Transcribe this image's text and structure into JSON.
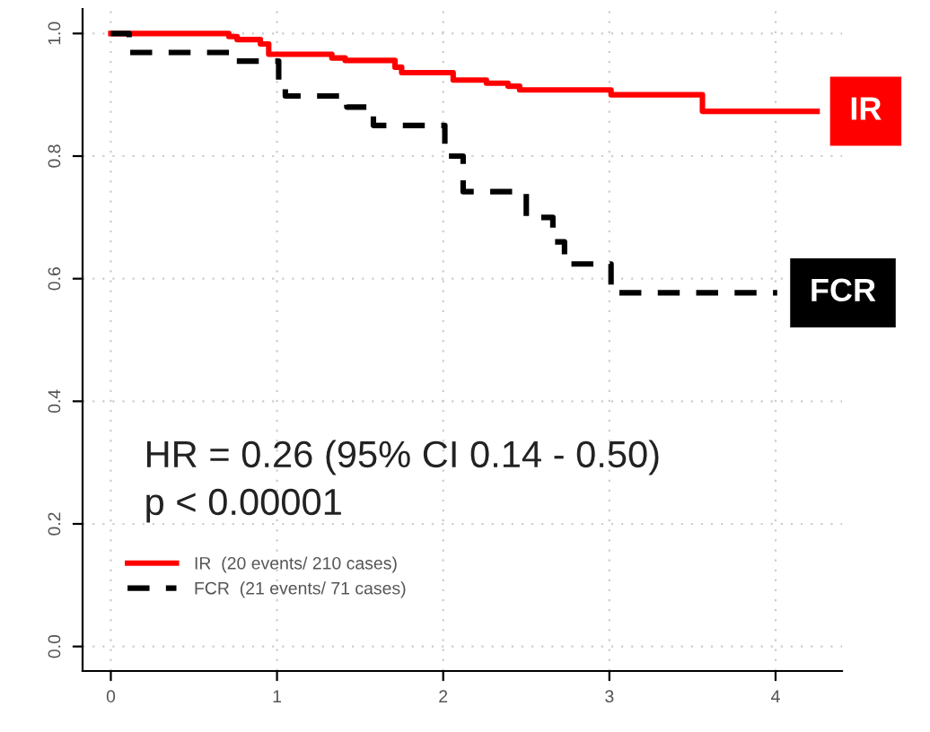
{
  "chart_data": {
    "type": "step",
    "xlim": [
      -0.17,
      4.4
    ],
    "ylim": [
      -0.04,
      1.04
    ],
    "xticks": [
      0,
      1,
      2,
      3,
      4
    ],
    "yticks": [
      {
        "value": 0,
        "label": "0.0"
      },
      0.2,
      0.4,
      0.6,
      0.8,
      {
        "value": 1,
        "label": "1.0"
      }
    ],
    "grid": true,
    "legend": "bottom left",
    "series": [
      {
        "name": "IR  (20 events/ 210 cases)",
        "color": "#ff0000",
        "line_style": "solid",
        "x": [
          0,
          0.71,
          0.76,
          0.9,
          0.95,
          1.33,
          1.41,
          1.71,
          1.75,
          2.06,
          2.26,
          2.39,
          2.46,
          3.01,
          3.56,
          4.25
        ],
        "values": [
          1.0,
          0.995,
          0.99,
          0.983,
          0.966,
          0.96,
          0.956,
          0.945,
          0.936,
          0.924,
          0.919,
          0.914,
          0.908,
          0.9,
          0.873,
          0.873
        ]
      },
      {
        "name": "FCR  (21 events/ 71 cases)",
        "color": "#000000",
        "line_style": "dashed",
        "x": [
          0,
          0.11,
          0.75,
          1.01,
          1.05,
          1.42,
          1.58,
          2.01,
          2.12,
          2.5,
          2.66,
          2.73,
          3.01,
          4.01
        ],
        "values": [
          1.0,
          0.969,
          0.955,
          0.92,
          0.898,
          0.88,
          0.85,
          0.8,
          0.742,
          0.7,
          0.66,
          0.624,
          0.577,
          0.577
        ]
      }
    ],
    "annotations": [
      {
        "text": "IR",
        "x": 4.25,
        "y": 0.873
      },
      {
        "text": "FCR",
        "x": 4.01,
        "y": 0.577
      },
      "HR = 0.26 (95% CI 0.14 - 0.50)",
      "p < 0.00001"
    ]
  }
}
